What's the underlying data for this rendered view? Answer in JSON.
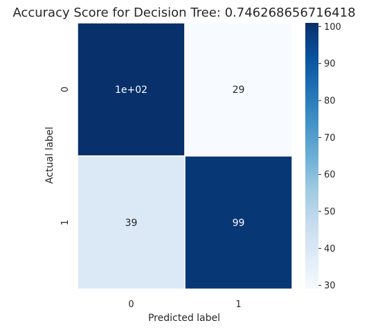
{
  "chart_data": {
    "type": "heatmap",
    "title": "Accuracy Score for Decision Tree: 0.746268656716418",
    "xlabel": "Predicted label",
    "ylabel": "Actual label",
    "x_categories": [
      "0",
      "1"
    ],
    "y_categories": [
      "0",
      "1"
    ],
    "values": [
      [
        101,
        29
      ],
      [
        39,
        99
      ]
    ],
    "annotations": [
      [
        "1e+02",
        "29"
      ],
      [
        "39",
        "99"
      ]
    ],
    "colormap": "Blues",
    "color_low": "#f7fbff",
    "color_high": "#08306b",
    "vmin": 29,
    "vmax": 101,
    "colorbar_ticks": [
      "30",
      "40",
      "50",
      "60",
      "70",
      "80",
      "90",
      "100"
    ],
    "colorbar_tick_values": [
      30,
      40,
      50,
      60,
      70,
      80,
      90,
      100
    ],
    "text_color_dark_cell": "#ffffff",
    "text_color_light_cell": "#262626"
  }
}
